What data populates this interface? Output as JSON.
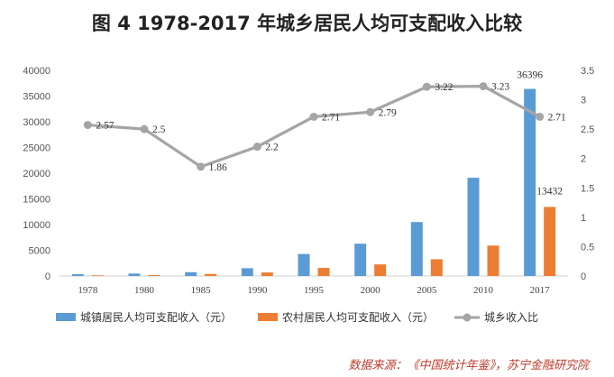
{
  "title": "图 4   1978-2017 年城乡居民人均可支配收入比较",
  "source": "数据来源：《中国统计年鉴》，苏宁金融研究院",
  "chart_data": {
    "type": "bar",
    "categories": [
      "1978",
      "1980",
      "1985",
      "1990",
      "1995",
      "2000",
      "2005",
      "2010",
      "2017"
    ],
    "left_axis": {
      "min": 0,
      "max": 40000,
      "step": 5000,
      "ticks": [
        "0",
        "5000",
        "10000",
        "15000",
        "20000",
        "25000",
        "30000",
        "35000",
        "40000"
      ]
    },
    "right_axis": {
      "min": 0,
      "max": 3.5,
      "step": 0.5,
      "ticks": [
        "0",
        "0.5",
        "1",
        "1.5",
        "2",
        "2.5",
        "3",
        "3.5"
      ]
    },
    "series": [
      {
        "name": "城镇居民人均可支配收入（元）",
        "type": "bar",
        "axis": "left",
        "color": "#5b9bd5",
        "values": [
          343,
          478,
          739,
          1510,
          4283,
          6280,
          10493,
          19109,
          36396
        ],
        "labels": [
          "",
          "",
          "",
          "",
          "",
          "",
          "",
          "",
          "36396"
        ]
      },
      {
        "name": "农村居民人均可支配收入（元）",
        "type": "bar",
        "axis": "left",
        "color": "#ed7d31",
        "values": [
          134,
          191,
          398,
          686,
          1578,
          2253,
          3255,
          5919,
          13432
        ],
        "labels": [
          "",
          "",
          "",
          "",
          "",
          "",
          "",
          "",
          "13432"
        ]
      },
      {
        "name": "城乡收入比",
        "type": "line",
        "axis": "right",
        "color": "#a5a5a5",
        "values": [
          2.57,
          2.5,
          1.86,
          2.2,
          2.71,
          2.79,
          3.22,
          3.23,
          2.71
        ],
        "labels": [
          "2.57",
          "2.5",
          "1.86",
          "2.2",
          "2.71",
          "2.79",
          "3.22",
          "3.23",
          "2.71"
        ]
      }
    ],
    "grid": false,
    "legend_position": "bottom"
  }
}
